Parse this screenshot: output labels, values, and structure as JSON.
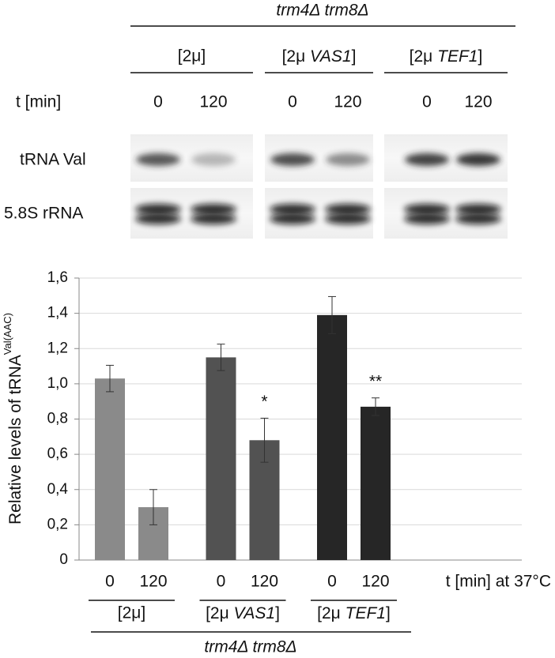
{
  "blot": {
    "title": "trm4Δ trm8Δ",
    "groups": [
      "[2μ]",
      "[2μ VAS1]",
      "[2μ TEF1]"
    ],
    "time_label": "t [min]",
    "times": [
      "0",
      "120",
      "0",
      "120",
      "0",
      "120"
    ],
    "rows": [
      "tRNA Val",
      "5.8S rRNA"
    ]
  },
  "chart_data": {
    "type": "bar",
    "categories": [
      "0",
      "120",
      "0",
      "120",
      "0",
      "120"
    ],
    "values": [
      1.03,
      0.3,
      1.15,
      0.68,
      1.39,
      0.87
    ],
    "errors": [
      0.075,
      0.1,
      0.075,
      0.125,
      0.105,
      0.05
    ],
    "value_annotations": [
      null,
      null,
      null,
      "*",
      null,
      "**"
    ],
    "colors": [
      "#8a8a8a",
      "#8a8a8a",
      "#525252",
      "#525252",
      "#262626",
      "#262626"
    ],
    "groups": [
      "[2μ]",
      "[2μ VAS1]",
      "[2μ TEF1]"
    ],
    "group_title": "trm4Δ trm8Δ",
    "xlabel": "t [min] at 37°C",
    "ylabel": "Relative levels of tRNA",
    "ylabel_sup": "Val(AAC)",
    "ylim": [
      0,
      1.6
    ],
    "yticks": [
      0,
      {
        "value": 0.2,
        "label": "0,2"
      },
      {
        "value": 0.4,
        "label": "0,4"
      },
      {
        "value": 0.6,
        "label": "0,6"
      },
      {
        "value": 0.8,
        "label": "0,8"
      },
      {
        "value": 1.0,
        "label": "1,0"
      },
      {
        "value": 1.2,
        "label": "1,2"
      },
      {
        "value": 1.4,
        "label": "1,4"
      },
      {
        "value": 1.6,
        "label": "1,6"
      }
    ],
    "grid": true
  }
}
